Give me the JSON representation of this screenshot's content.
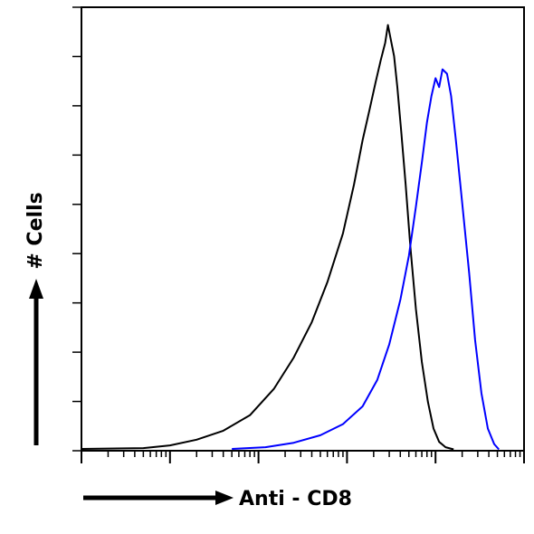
{
  "chart_data": {
    "type": "line",
    "title": "",
    "xlabel": "Anti - CD8",
    "ylabel": "# Cells",
    "xscale": "log",
    "xlim": [
      1,
      100000
    ],
    "ylim": [
      0,
      100
    ],
    "grid": false,
    "legend": "none",
    "series": [
      {
        "color": "#000000",
        "points": [
          [
            1,
            0.4
          ],
          [
            5,
            0.6
          ],
          [
            10,
            1.2
          ],
          [
            20,
            2.5
          ],
          [
            40,
            4.5
          ],
          [
            80,
            8
          ],
          [
            150,
            14
          ],
          [
            250,
            21
          ],
          [
            400,
            29
          ],
          [
            600,
            38
          ],
          [
            900,
            49
          ],
          [
            1200,
            60
          ],
          [
            1500,
            70
          ],
          [
            1800,
            77
          ],
          [
            2100,
            83
          ],
          [
            2400,
            88
          ],
          [
            2700,
            92
          ],
          [
            2900,
            96
          ],
          [
            3100,
            93
          ],
          [
            3400,
            89
          ],
          [
            3700,
            82
          ],
          [
            4100,
            72
          ],
          [
            4600,
            60
          ],
          [
            5200,
            46
          ],
          [
            6000,
            32
          ],
          [
            7000,
            20
          ],
          [
            8200,
            11
          ],
          [
            9500,
            5
          ],
          [
            11000,
            2
          ],
          [
            13000,
            0.8
          ],
          [
            16000,
            0.3
          ]
        ]
      },
      {
        "color": "#0000ff",
        "points": [
          [
            50,
            0.4
          ],
          [
            120,
            0.8
          ],
          [
            250,
            1.8
          ],
          [
            500,
            3.5
          ],
          [
            900,
            6
          ],
          [
            1500,
            10
          ],
          [
            2200,
            16
          ],
          [
            3000,
            24
          ],
          [
            4000,
            34
          ],
          [
            5000,
            44
          ],
          [
            6000,
            55
          ],
          [
            7000,
            65
          ],
          [
            8000,
            74
          ],
          [
            9000,
            80
          ],
          [
            10000,
            84
          ],
          [
            11000,
            82
          ],
          [
            12000,
            86
          ],
          [
            13500,
            85
          ],
          [
            15000,
            80
          ],
          [
            17000,
            70
          ],
          [
            20000,
            56
          ],
          [
            24000,
            40
          ],
          [
            28000,
            25
          ],
          [
            33000,
            13
          ],
          [
            39000,
            5
          ],
          [
            46000,
            1.5
          ],
          [
            52000,
            0.3
          ]
        ]
      }
    ]
  }
}
